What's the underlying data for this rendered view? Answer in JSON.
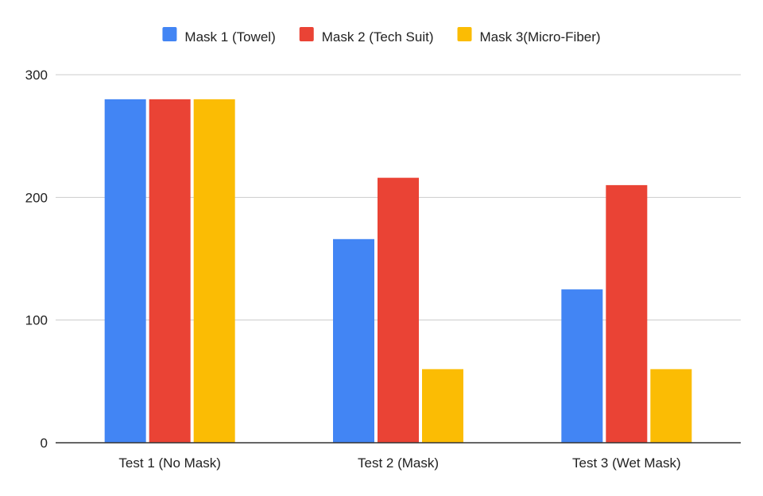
{
  "chart_data": {
    "type": "bar",
    "title": "",
    "xlabel": "",
    "ylabel": "",
    "categories": [
      "Test 1 (No Mask)",
      "Test 2 (Mask)",
      "Test 3 (Wet Mask)"
    ],
    "series": [
      {
        "name": "Mask 1 (Towel)",
        "color": "#4285f4",
        "values": [
          280,
          166,
          125
        ]
      },
      {
        "name": "Mask 2 (Tech Suit)",
        "color": "#ea4335",
        "values": [
          280,
          216,
          210
        ]
      },
      {
        "name": "Mask 3(Micro-Fiber)",
        "color": "#fbbc04",
        "values": [
          280,
          60,
          60
        ]
      }
    ],
    "ylim": [
      0,
      300
    ],
    "yticks": [
      "0",
      "100",
      "200",
      "300"
    ],
    "grid": true,
    "legend_position": "top-center"
  }
}
